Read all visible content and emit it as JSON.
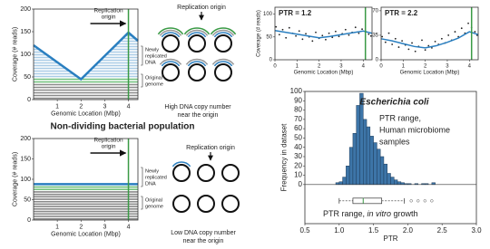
{
  "heading": "Non-dividing bacterial population",
  "chart_data": [
    {
      "type": "line",
      "xlabel": "Genomic Location (Mbp)",
      "ylabel": "Coverage (# reads)",
      "xlim": [
        0,
        4.4
      ],
      "ylim": [
        0,
        200
      ],
      "xticks": [
        1,
        2,
        3,
        4
      ],
      "yticks": [
        0,
        50,
        100,
        150,
        200
      ],
      "x": [
        0,
        2,
        4,
        4.4
      ],
      "values": [
        120,
        45,
        148,
        130
      ],
      "color": "#2a7fc0",
      "origin": 4,
      "origin_color": "#3a9a45",
      "origin_label": [
        "Replication",
        "origin"
      ],
      "newly": [
        "Newly",
        "replicated",
        "DNA"
      ],
      "original": [
        "Original",
        "genome"
      ],
      "diagram_title": "Replication origin",
      "caption": [
        "High DNA copy number",
        "near the origin"
      ]
    },
    {
      "type": "line",
      "xlabel": "Genomic Location (Mbp)",
      "ylabel": "Coverage (# reads)",
      "xlim": [
        0,
        4.4
      ],
      "ylim": [
        0,
        200
      ],
      "xticks": [
        1,
        2,
        3,
        4
      ],
      "yticks": [
        0,
        50,
        100,
        150,
        200
      ],
      "x": [
        0,
        4.4
      ],
      "values": [
        88,
        88
      ],
      "color": "#2a7fc0",
      "origin": 4,
      "origin_color": "#3a9a45",
      "origin_label": [
        "Replication",
        "origin"
      ],
      "newly": [
        "Newly",
        "replicated",
        "DNA"
      ],
      "original": [
        "Original",
        "genome"
      ],
      "diagram_title": "Replication origin",
      "caption": [
        "Low DNA copy number",
        "near the origin"
      ]
    },
    {
      "type": "scatter",
      "title": "PTR = 1.2",
      "xlabel": "Genomic Location (Mbp)",
      "ylabel": "Coverage (# reads)",
      "xlim": [
        0,
        4.4
      ],
      "ylim": [
        0,
        115
      ],
      "xticks": [
        0,
        1,
        2,
        3,
        4
      ],
      "yticks": [
        0,
        50,
        100
      ],
      "x": [
        0.05,
        0.2,
        0.35,
        0.5,
        0.65,
        0.8,
        0.95,
        1.1,
        1.25,
        1.4,
        1.55,
        1.7,
        1.85,
        2.0,
        2.15,
        2.3,
        2.45,
        2.6,
        2.75,
        2.9,
        3.05,
        3.2,
        3.35,
        3.5,
        3.65,
        3.8,
        3.95,
        4.1,
        4.25,
        4.35
      ],
      "values": [
        72,
        55,
        66,
        48,
        70,
        58,
        52,
        63,
        45,
        57,
        50,
        41,
        60,
        47,
        53,
        44,
        58,
        49,
        62,
        51,
        57,
        66,
        54,
        60,
        71,
        58,
        67,
        63,
        56,
        52
      ],
      "color": "#222222",
      "fit": {
        "x": [
          0,
          0.5,
          1,
          1.5,
          2,
          2.5,
          3,
          3.5,
          4,
          4.4
        ],
        "values": [
          64,
          60,
          56,
          52,
          48,
          51,
          55,
          59,
          63,
          58
        ],
        "color": "#2a7fc0"
      },
      "origin": 4.1,
      "origin_color": "#3a9a45"
    },
    {
      "type": "scatter",
      "title": "PTR = 2.2",
      "xlabel": "Genomic Location (Mbp)",
      "xlim": [
        0,
        4.4
      ],
      "ylim": [
        0,
        75
      ],
      "xticks": [
        0,
        1,
        2,
        3,
        4
      ],
      "yticks": [
        0,
        35,
        70
      ],
      "x": [
        0.05,
        0.2,
        0.35,
        0.5,
        0.65,
        0.8,
        0.95,
        1.1,
        1.25,
        1.4,
        1.55,
        1.7,
        1.85,
        2.0,
        2.15,
        2.3,
        2.45,
        2.6,
        2.75,
        2.9,
        3.05,
        3.2,
        3.35,
        3.5,
        3.65,
        3.8,
        3.95,
        4.1,
        4.25,
        4.35
      ],
      "values": [
        33,
        25,
        38,
        22,
        30,
        18,
        27,
        21,
        15,
        24,
        12,
        19,
        28,
        14,
        20,
        17,
        26,
        22,
        30,
        24,
        35,
        28,
        40,
        33,
        45,
        38,
        52,
        46,
        40,
        35
      ],
      "color": "#222222",
      "fit": {
        "x": [
          0,
          0.5,
          1,
          1.5,
          2,
          2.5,
          3,
          3.5,
          4,
          4.4
        ],
        "values": [
          30,
          27,
          23,
          19,
          17,
          20,
          25,
          31,
          40,
          36
        ],
        "color": "#2a7fc0"
      },
      "origin": 4.1,
      "origin_color": "#3a9a45"
    },
    {
      "type": "histogram",
      "title": "Escherichia coli",
      "xlabel": "PTR",
      "ylabel": "Frequency in dataset",
      "xlim": [
        0.5,
        3.0
      ],
      "ylim": [
        -42,
        100
      ],
      "xticks": [
        0.5,
        {
          "value": 1.0,
          "label": "1.0"
        },
        1.5,
        {
          "value": 2.0,
          "label": "2.0"
        },
        2.5,
        {
          "value": 3.0,
          "label": "3.0"
        }
      ],
      "yticks": [
        0,
        10,
        20,
        30,
        40,
        50,
        60,
        70,
        80,
        90,
        100
      ],
      "bins": [
        0.95,
        1.0,
        1.05,
        1.1,
        1.15,
        1.2,
        1.25,
        1.3,
        1.35,
        1.4,
        1.45,
        1.5,
        1.55,
        1.6,
        1.65,
        1.7,
        1.75,
        1.8,
        1.85,
        1.9,
        1.95,
        2.0,
        2.05,
        2.1,
        2.15,
        2.2,
        2.25,
        2.3,
        2.35,
        2.4,
        2.45,
        2.5
      ],
      "values": [
        2,
        3,
        8,
        20,
        40,
        55,
        85,
        98,
        70,
        62,
        52,
        45,
        38,
        30,
        22,
        12,
        8,
        5,
        3,
        2,
        1,
        1,
        0,
        1,
        0,
        1,
        1,
        0,
        2,
        0,
        0
      ],
      "color": "#3d75a8",
      "annotation": [
        "PTR range,",
        "Human microbiome",
        "samples"
      ],
      "boxplot": {
        "whisker_low": 1.0,
        "q1": 1.2,
        "median": 1.35,
        "q3": 1.62,
        "whisker_high": 1.95,
        "outliers": [
          2.05,
          2.15,
          2.25,
          2.35
        ],
        "label": [
          "PTR range, ",
          "in vitro",
          " growth"
        ]
      }
    }
  ]
}
